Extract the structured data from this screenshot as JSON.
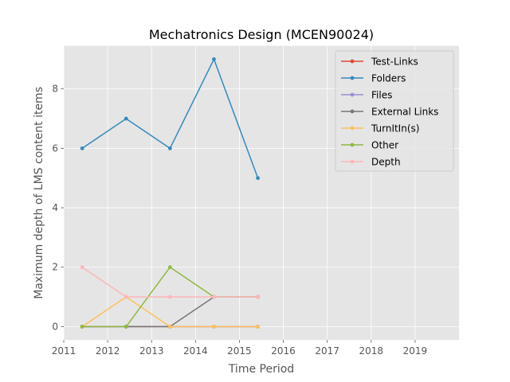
{
  "chart_data": {
    "type": "line",
    "title": "Mechatronics Design (MCEN90024)",
    "xlabel": "Time Period",
    "ylabel": "Maximum depth of LMS content items",
    "xlim": [
      2011,
      2020
    ],
    "ylim": [
      -0.45,
      9.45
    ],
    "xticks": [
      2011,
      2012,
      2013,
      2014,
      2015,
      2016,
      2017,
      2018,
      2019
    ],
    "yticks": [
      0,
      2,
      4,
      6,
      8
    ],
    "grid": true,
    "legend_position": "top-right",
    "x": [
      2011.42,
      2012.42,
      2013.42,
      2014.42,
      2015.42
    ],
    "series": [
      {
        "name": "Test-Links",
        "color": "#E24A33",
        "values": [
          0,
          0,
          0,
          0,
          0
        ]
      },
      {
        "name": "Folders",
        "color": "#348ABD",
        "values": [
          6,
          7,
          6,
          9,
          5
        ]
      },
      {
        "name": "Files",
        "color": "#988ED5",
        "values": [
          0,
          0,
          0,
          0,
          0
        ]
      },
      {
        "name": "External Links",
        "color": "#777777",
        "values": [
          0,
          0,
          0,
          1,
          1
        ]
      },
      {
        "name": "TurnItIn(s)",
        "color": "#FBC15E",
        "values": [
          0,
          1,
          0,
          0,
          0
        ]
      },
      {
        "name": "Other",
        "color": "#8EBA42",
        "values": [
          0,
          0,
          2,
          1,
          1
        ]
      },
      {
        "name": "Depth",
        "color": "#FFB5B8",
        "values": [
          2,
          1,
          1,
          1,
          1
        ]
      }
    ]
  }
}
